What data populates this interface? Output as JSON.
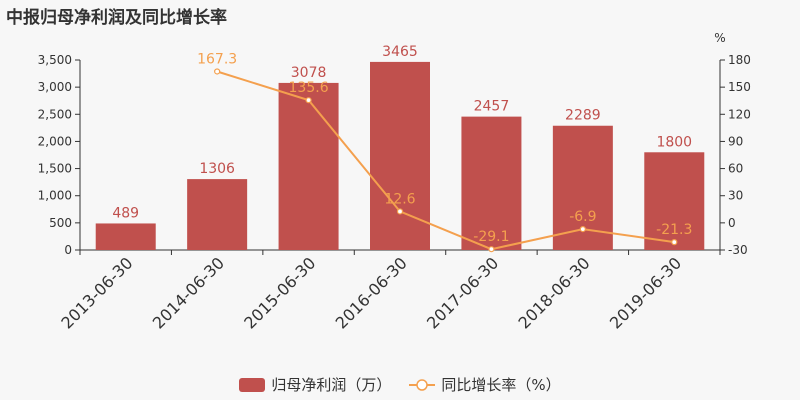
{
  "title": "中报归母净利润及同比增长率",
  "chart_data": {
    "type": "bar",
    "title": "中报归母净利润及同比增长率",
    "categories": [
      "2013-06-30",
      "2014-06-30",
      "2015-06-30",
      "2016-06-30",
      "2017-06-30",
      "2018-06-30",
      "2019-06-30"
    ],
    "series": [
      {
        "name": "归母净利润（万）",
        "type": "bar",
        "axis": "left",
        "color": "#c0504d",
        "values": [
          489,
          1306,
          3078,
          3465,
          2457,
          2289,
          1800
        ]
      },
      {
        "name": "同比增长率（%）",
        "type": "line",
        "axis": "right",
        "color": "#f4a04e",
        "values": [
          null,
          167.3,
          135.6,
          12.6,
          -29.1,
          -6.9,
          -21.3
        ]
      }
    ],
    "left_axis": {
      "min": 0,
      "max": 3500,
      "ticks": [
        "0",
        "500",
        "1,000",
        "1,500",
        "2,000",
        "2,500",
        "3,000",
        "3,500"
      ],
      "tick_values": [
        0,
        500,
        1000,
        1500,
        2000,
        2500,
        3000,
        3500
      ]
    },
    "right_axis": {
      "min": -30,
      "max": 180,
      "unit": "%",
      "ticks": [
        "-30",
        "0",
        "30",
        "60",
        "90",
        "120",
        "150",
        "180"
      ],
      "tick_values": [
        -30,
        0,
        30,
        60,
        90,
        120,
        150,
        180
      ]
    },
    "bar_labels": [
      "489",
      "1306",
      "3078",
      "3465",
      "2457",
      "2289",
      "1800"
    ],
    "line_labels": [
      "",
      "167.3",
      "135.6",
      "12.6",
      "-29.1",
      "-6.9",
      "-21.3"
    ],
    "legend_position": "bottom",
    "grid": false
  },
  "legend": {
    "bar_label": "归母净利润（万）",
    "line_label": "同比增长率（%）"
  }
}
